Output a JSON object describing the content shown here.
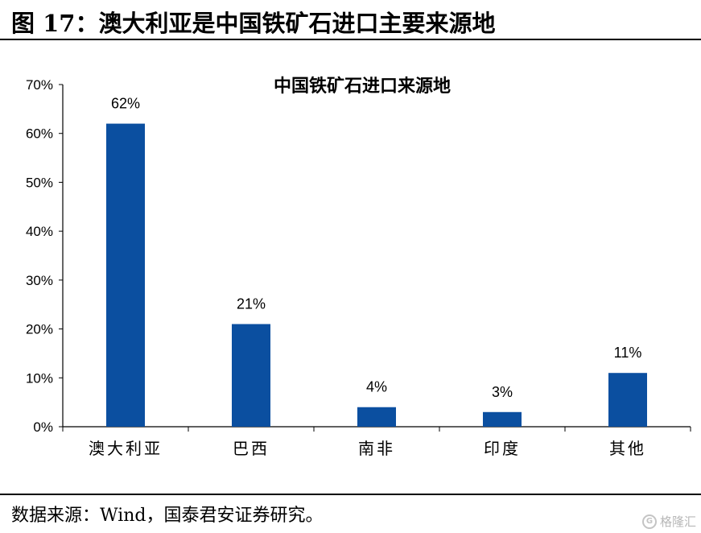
{
  "figure": {
    "title": "图 17：澳大利亚是中国铁矿石进口主要来源地",
    "source": "数据来源：Wind，国泰君安证券研究。",
    "watermark": "格隆汇",
    "watermark_logo": "G"
  },
  "chart_data": {
    "type": "bar",
    "title": "中国铁矿石进口来源地",
    "categories": [
      "澳大利亚",
      "巴西",
      "南非",
      "印度",
      "其他"
    ],
    "values": [
      62,
      21,
      4,
      3,
      11
    ],
    "data_labels": [
      "62%",
      "21%",
      "4%",
      "3%",
      "11%"
    ],
    "y_ticks": [
      "0%",
      "10%",
      "20%",
      "30%",
      "40%",
      "50%",
      "60%",
      "70%"
    ],
    "ylim": [
      0,
      70
    ],
    "grid": false,
    "legend": "none",
    "bar_color": "#0b4fa0"
  }
}
